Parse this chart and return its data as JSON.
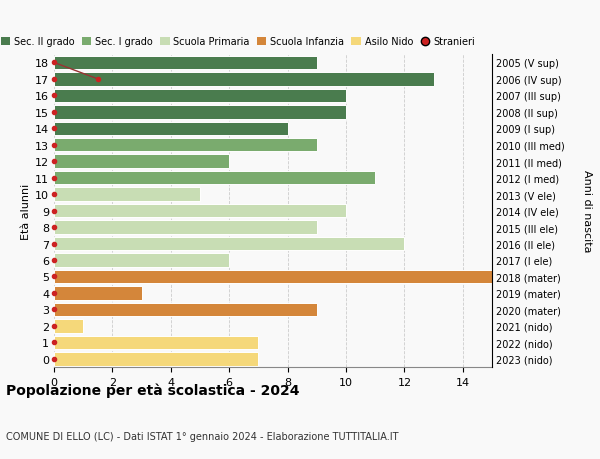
{
  "ages": [
    18,
    17,
    16,
    15,
    14,
    13,
    12,
    11,
    10,
    9,
    8,
    7,
    6,
    5,
    4,
    3,
    2,
    1,
    0
  ],
  "years": [
    "2005 (V sup)",
    "2006 (IV sup)",
    "2007 (III sup)",
    "2008 (II sup)",
    "2009 (I sup)",
    "2010 (III med)",
    "2011 (II med)",
    "2012 (I med)",
    "2013 (V ele)",
    "2014 (IV ele)",
    "2015 (III ele)",
    "2016 (II ele)",
    "2017 (I ele)",
    "2018 (mater)",
    "2019 (mater)",
    "2020 (mater)",
    "2021 (nido)",
    "2022 (nido)",
    "2023 (nido)"
  ],
  "values": [
    9,
    13,
    10,
    10,
    8,
    9,
    6,
    11,
    5,
    10,
    9,
    12,
    6,
    15,
    3,
    9,
    1,
    7,
    7
  ],
  "bar_colors": [
    "#4a7c4e",
    "#4a7c4e",
    "#4a7c4e",
    "#4a7c4e",
    "#4a7c4e",
    "#7aab6e",
    "#7aab6e",
    "#7aab6e",
    "#c8ddb4",
    "#c8ddb4",
    "#c8ddb4",
    "#c8ddb4",
    "#c8ddb4",
    "#d4863a",
    "#d4863a",
    "#d4863a",
    "#f5d87a",
    "#f5d87a",
    "#f5d87a"
  ],
  "title": "Popolazione per età scolastica - 2024",
  "subtitle": "COMUNE DI ELLO (LC) - Dati ISTAT 1° gennaio 2024 - Elaborazione TUTTITALIA.IT",
  "ylabel": "Età alunni",
  "ylabel_right": "Anni di nascita",
  "xlim": [
    0,
    15
  ],
  "xticks": [
    0,
    2,
    4,
    6,
    8,
    10,
    12,
    14
  ],
  "legend_labels": [
    "Sec. II grado",
    "Sec. I grado",
    "Scuola Primaria",
    "Scuola Infanzia",
    "Asilo Nido",
    "Stranieri"
  ],
  "legend_colors": [
    "#4a7c4e",
    "#7aab6e",
    "#c8ddb4",
    "#d4863a",
    "#f5d87a",
    "#cc2222"
  ],
  "bg_color": "#f9f9f9",
  "grid_color": "#cccccc",
  "stranieri_line_x": [
    0,
    1.5
  ],
  "stranieri_line_ages": [
    18,
    17
  ],
  "bar_height": 0.82
}
